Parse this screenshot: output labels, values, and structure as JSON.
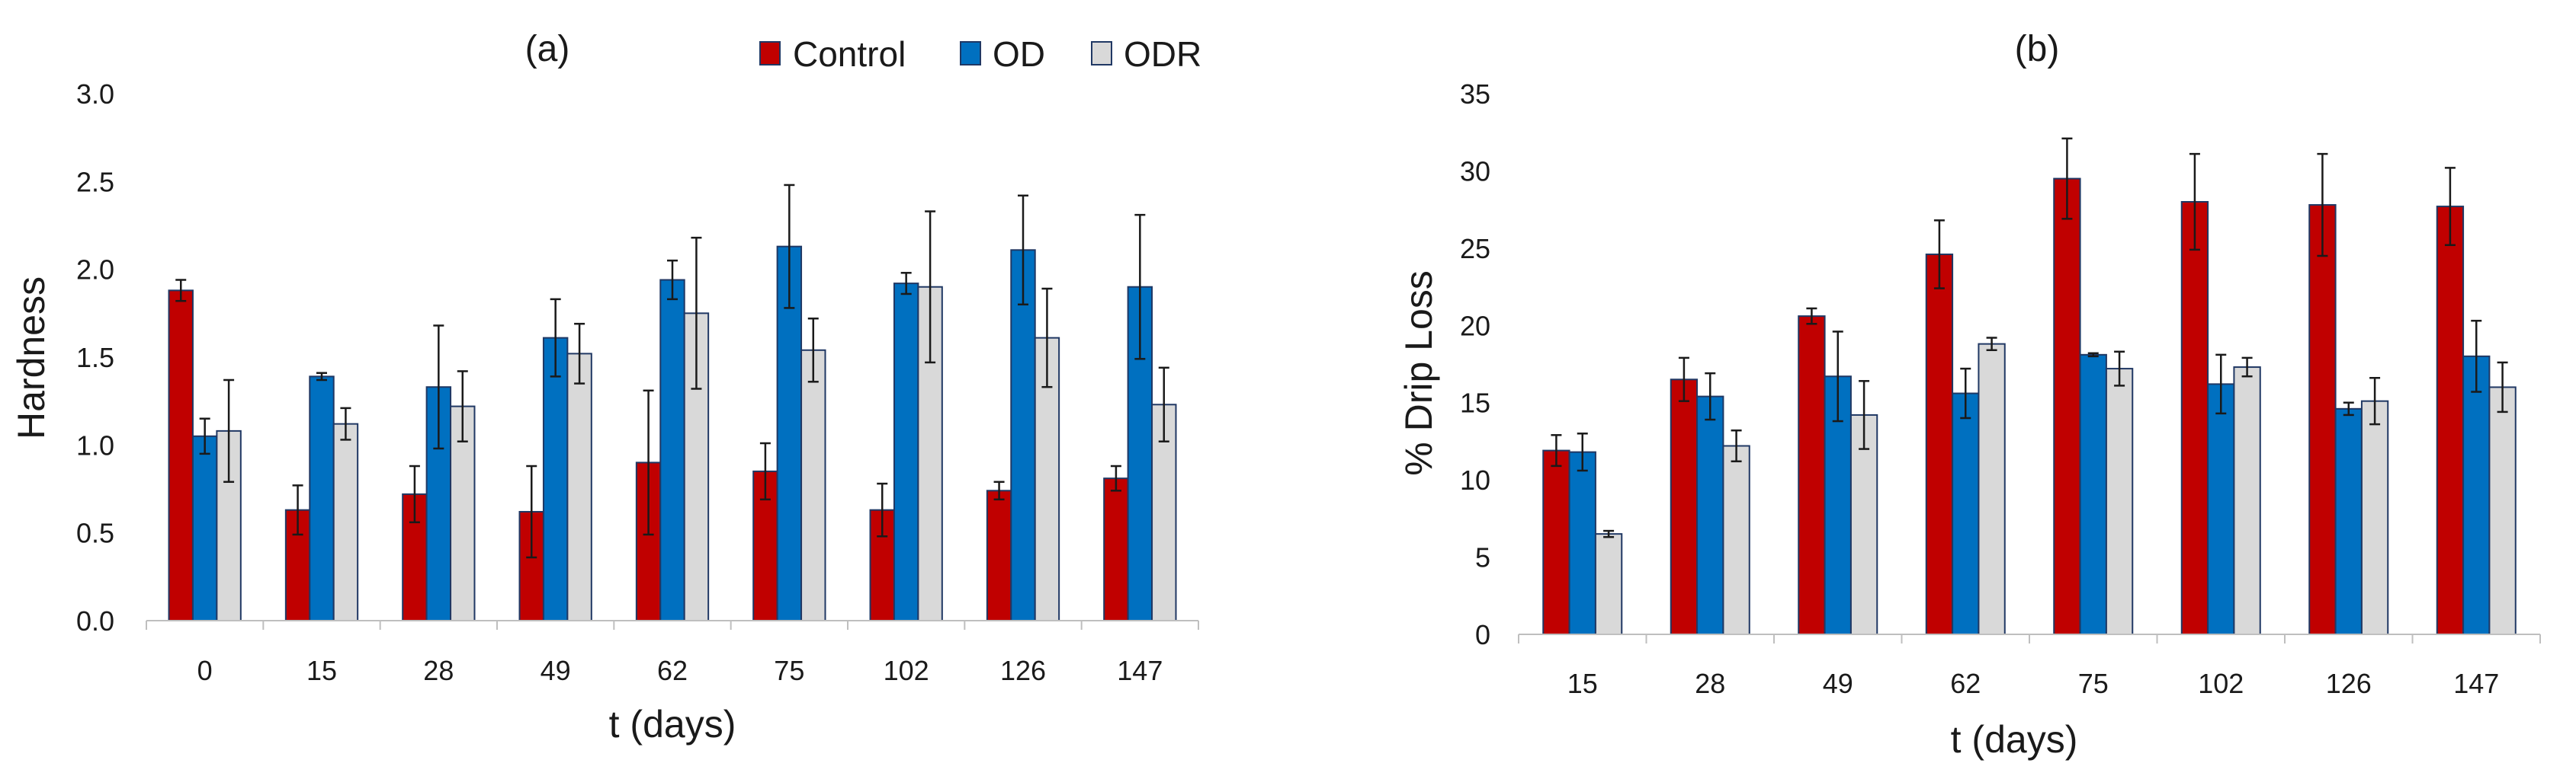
{
  "colors": {
    "Control": "#c00000",
    "OD": "#0070c0",
    "ODR": "#d9d9d9",
    "bar_outline": "#203864"
  },
  "legend": {
    "items": [
      "Control",
      "OD",
      "ODR"
    ]
  },
  "chart_data": [
    {
      "type": "bar",
      "title": "(a)",
      "xlabel": "t (days)",
      "ylabel": "Hardness",
      "ylim": [
        0,
        3.0
      ],
      "yticks": [
        "0.0",
        "0.5",
        "1.0",
        "1.5",
        "2.0",
        "2.5",
        "3.0"
      ],
      "categories": [
        "0",
        "15",
        "28",
        "49",
        "62",
        "75",
        "102",
        "126",
        "147"
      ],
      "series": [
        {
          "name": "Control",
          "values": [
            1.88,
            0.63,
            0.72,
            0.62,
            0.9,
            0.85,
            0.63,
            0.74,
            0.81
          ],
          "errors": [
            0.06,
            0.14,
            0.16,
            0.26,
            0.41,
            0.16,
            0.15,
            0.05,
            0.07
          ]
        },
        {
          "name": "OD",
          "values": [
            1.05,
            1.39,
            1.33,
            1.61,
            1.94,
            2.13,
            1.92,
            2.11,
            1.9
          ],
          "errors": [
            0.1,
            0.02,
            0.35,
            0.22,
            0.11,
            0.35,
            0.06,
            0.31,
            0.41
          ]
        },
        {
          "name": "ODR",
          "values": [
            1.08,
            1.12,
            1.22,
            1.52,
            1.75,
            1.54,
            1.9,
            1.61,
            1.23
          ],
          "errors": [
            0.29,
            0.09,
            0.2,
            0.17,
            0.43,
            0.18,
            0.43,
            0.28,
            0.21
          ]
        }
      ]
    },
    {
      "type": "bar",
      "title": "(b)",
      "xlabel": "t (days)",
      "ylabel": "% Drip Loss",
      "ylim": [
        0,
        35
      ],
      "yticks": [
        "0",
        "5",
        "10",
        "15",
        "20",
        "25",
        "30",
        "35"
      ],
      "categories": [
        "15",
        "28",
        "49",
        "62",
        "75",
        "102",
        "126",
        "147"
      ],
      "series": [
        {
          "name": "Control",
          "values": [
            11.9,
            16.5,
            20.6,
            24.6,
            29.5,
            28.0,
            27.8,
            27.7
          ],
          "errors": [
            1.0,
            1.4,
            0.5,
            2.2,
            2.6,
            3.1,
            3.3,
            2.5
          ]
        },
        {
          "name": "OD",
          "values": [
            11.8,
            15.4,
            16.7,
            15.6,
            18.1,
            16.2,
            14.6,
            18.0
          ],
          "errors": [
            1.2,
            1.5,
            2.9,
            1.6,
            0.1,
            1.9,
            0.4,
            2.3
          ]
        },
        {
          "name": "ODR",
          "values": [
            6.5,
            12.2,
            14.2,
            18.8,
            17.2,
            17.3,
            15.1,
            16.0
          ],
          "errors": [
            0.2,
            1.0,
            2.2,
            0.4,
            1.1,
            0.6,
            1.5,
            1.6
          ]
        }
      ]
    }
  ]
}
